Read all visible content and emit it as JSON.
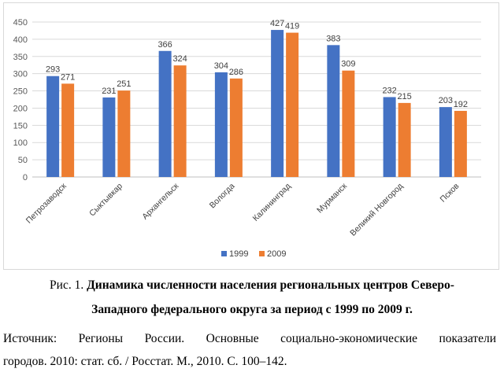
{
  "chart_data": {
    "type": "bar",
    "title": "",
    "xlabel": "",
    "ylabel": "",
    "ylim": [
      0,
      450
    ],
    "yticks": [
      0,
      50,
      100,
      150,
      200,
      250,
      300,
      350,
      400,
      450
    ],
    "grid": true,
    "legend_position": "bottom",
    "categories": [
      "Петрозаводск",
      "Сыктывкар",
      "Архангельск",
      "Вологда",
      "Калининград",
      "Мурманск",
      "Великий Новгород",
      "Псков"
    ],
    "series": [
      {
        "name": "1999",
        "color": "#4472c4",
        "values": [
          293,
          231,
          366,
          304,
          427,
          383,
          232,
          203
        ]
      },
      {
        "name": "2009",
        "color": "#ed7d31",
        "values": [
          271,
          251,
          324,
          286,
          419,
          309,
          215,
          192
        ]
      }
    ]
  },
  "caption": {
    "prefix": "Рис. 1. ",
    "line1": "Динамика численности населения региональных центров Северо-",
    "line2": "Западного федерального округа за период с 1999 по 2009 г."
  },
  "source": {
    "line1": "Источник: Регионы России. Основные социально-экономические показатели",
    "line2": "городов. 2010: стат. сб. / Росстат. М., 2010. С. 100–142."
  }
}
